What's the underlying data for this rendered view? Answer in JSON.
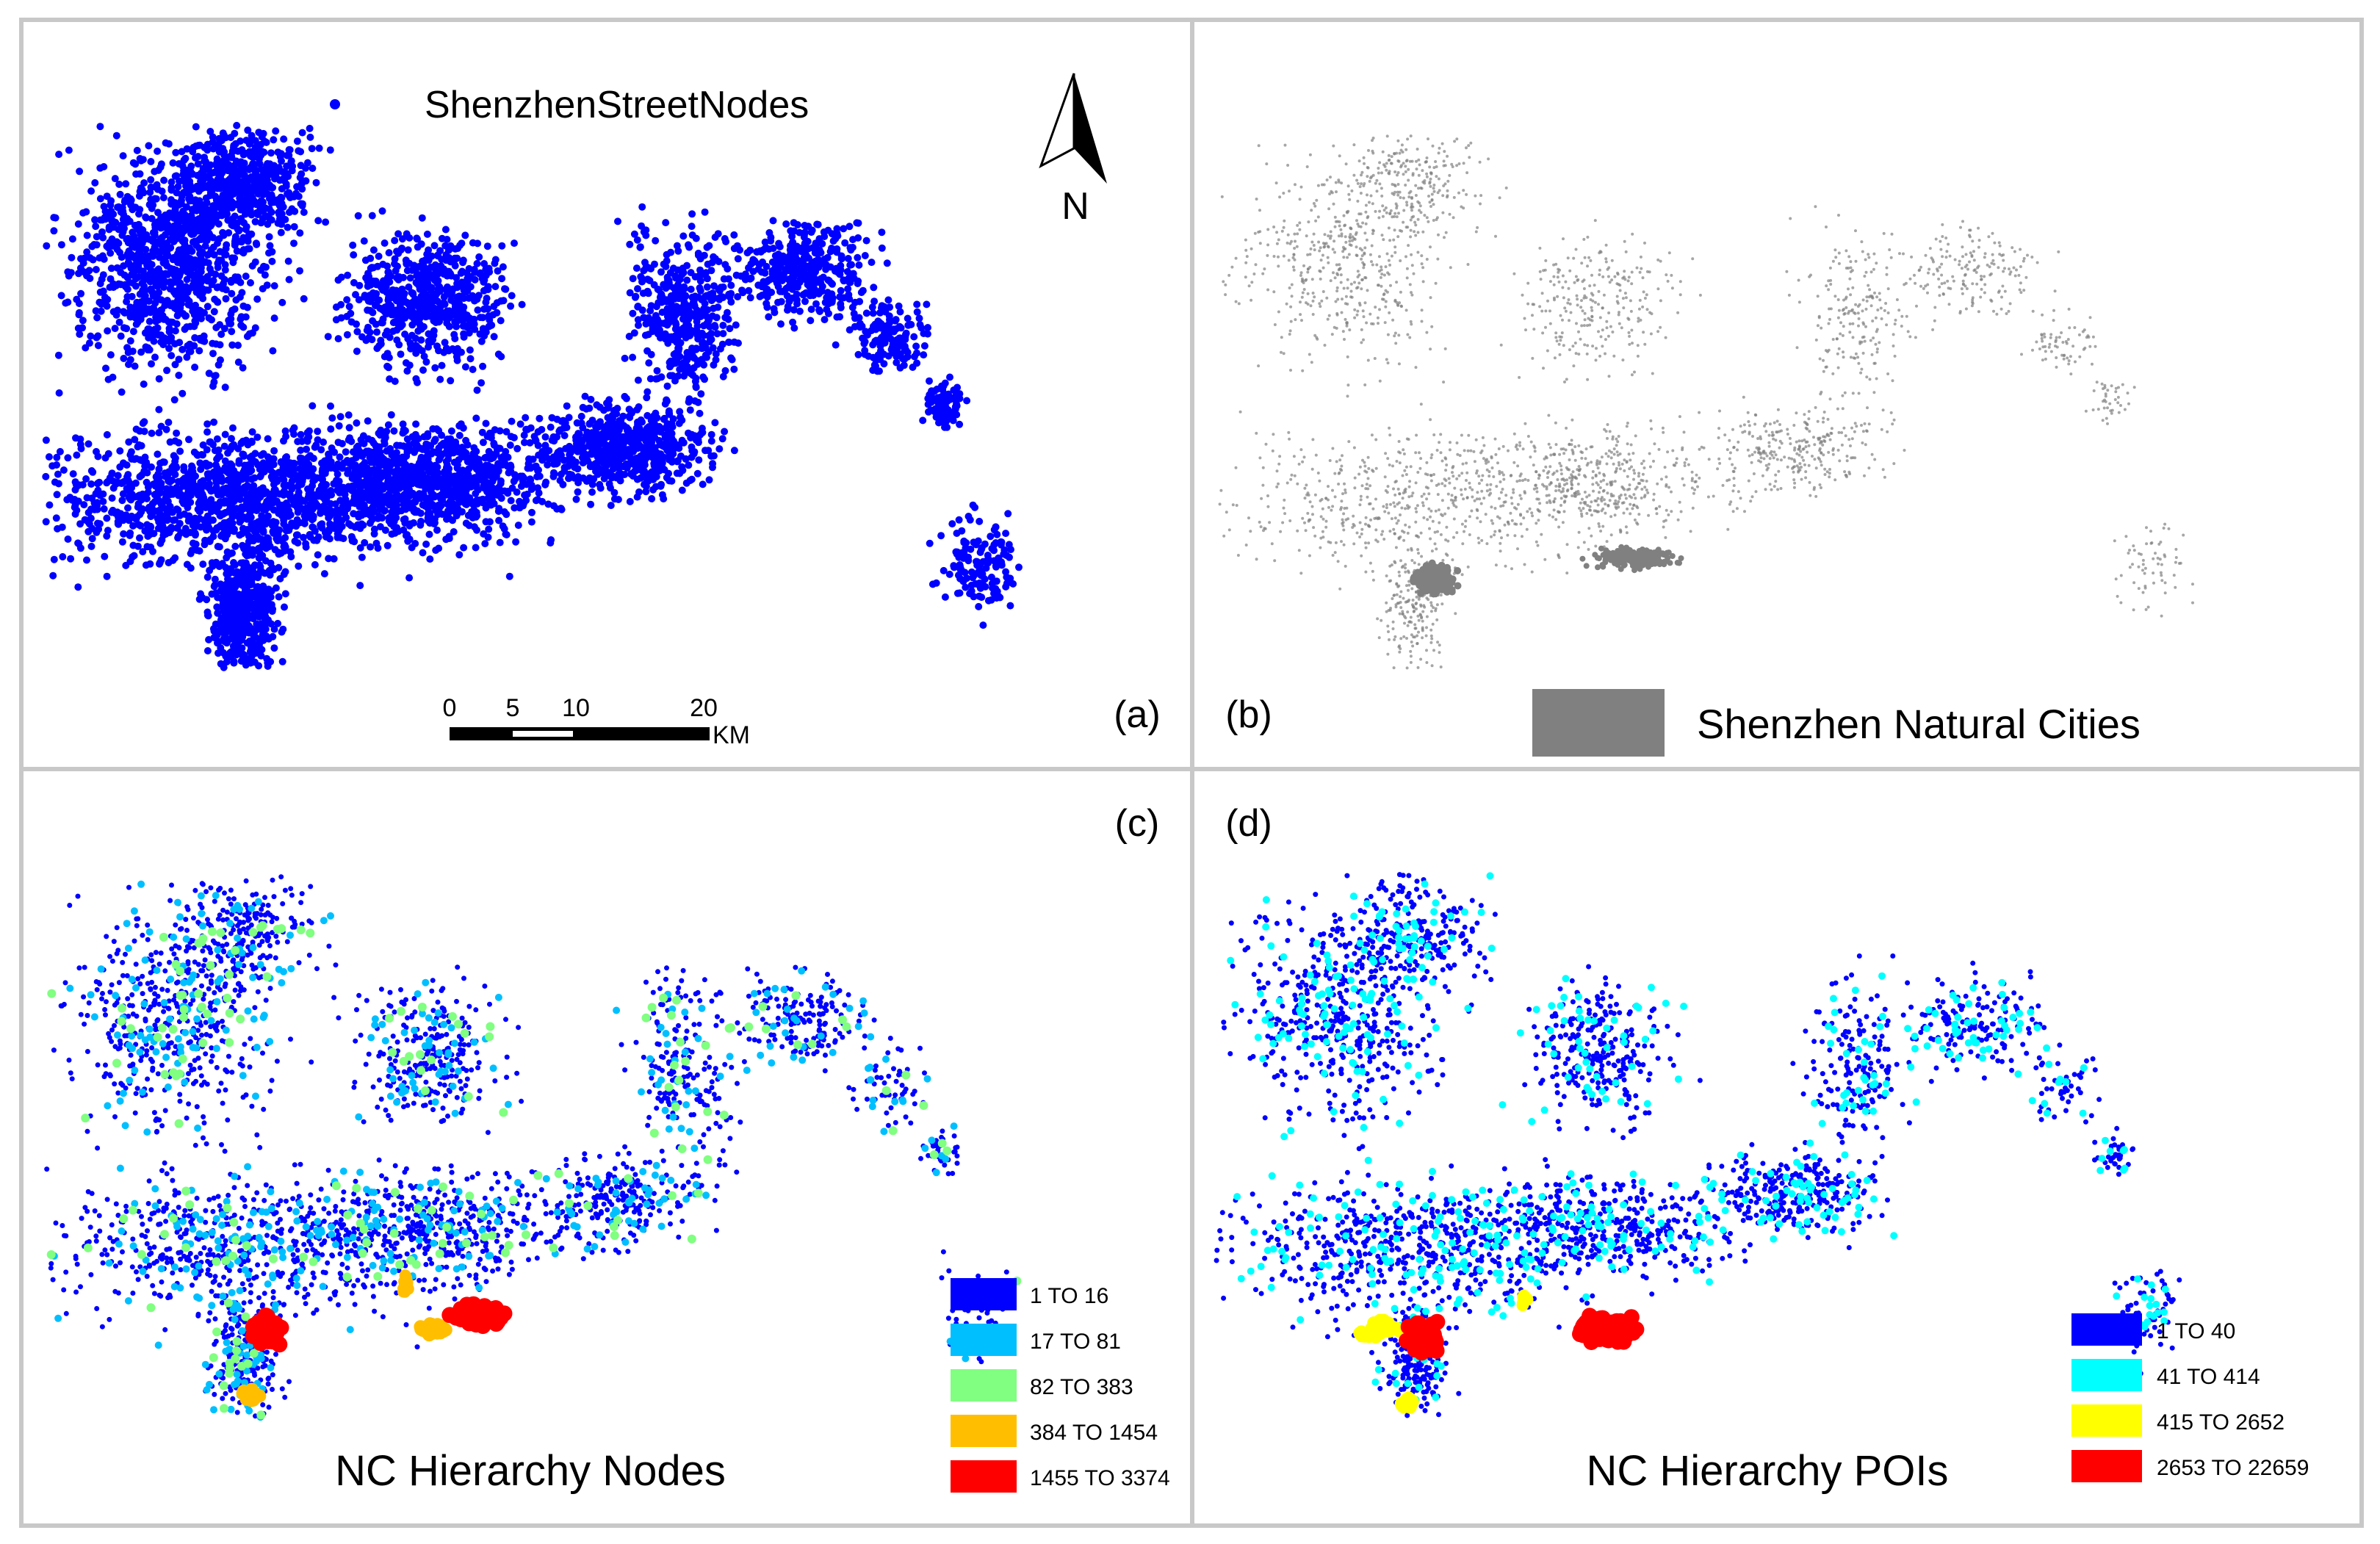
{
  "panel_a": {
    "legend_label": "ShenzhenStreetNodes",
    "north_label": "N",
    "scale_ticks": [
      "0",
      "5",
      "10",
      "20"
    ],
    "scale_unit": "KM",
    "panel_label": "(a)",
    "point_color": "#0000ff"
  },
  "panel_b": {
    "panel_label": "(b)",
    "legend_label": "Shenzhen Natural Cities",
    "fill_color": "#808080"
  },
  "panel_c": {
    "panel_label": "(c)",
    "title": "NC Hierarchy Nodes",
    "legend": [
      {
        "label": "1 TO 16",
        "color": "#0000ff"
      },
      {
        "label": "17 TO 81",
        "color": "#00bfff"
      },
      {
        "label": "82 TO 383",
        "color": "#80ff80"
      },
      {
        "label": "384 TO 1454",
        "color": "#ffbf00"
      },
      {
        "label": "1455 TO 3374",
        "color": "#ff0000"
      }
    ]
  },
  "panel_d": {
    "panel_label": "(d)",
    "title": "NC Hierarchy POIs",
    "legend": [
      {
        "label": "1 TO 40",
        "color": "#0000ff"
      },
      {
        "label": "41 TO 414",
        "color": "#00ffff"
      },
      {
        "label": "415 TO 2652",
        "color": "#ffff00"
      },
      {
        "label": "2653 TO 22659",
        "color": "#ff0000"
      }
    ]
  }
}
